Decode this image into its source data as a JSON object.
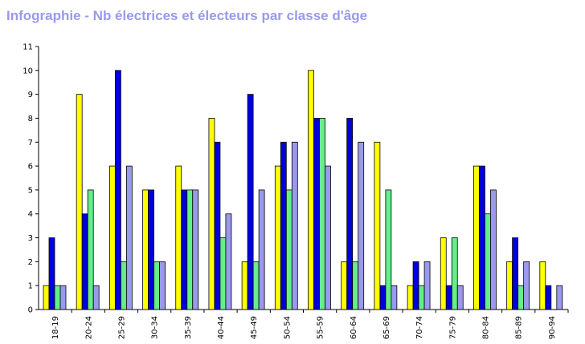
{
  "title": "Infographie - Nb électrices et électeurs par classe d'âge",
  "chart_data": {
    "type": "bar",
    "title": "Infographie - Nb électrices et électeurs par classe d'âge",
    "xlabel": "",
    "ylabel": "",
    "ylim": [
      0,
      11
    ],
    "yticks": [
      0,
      1,
      2,
      3,
      4,
      5,
      6,
      7,
      8,
      9,
      10,
      11
    ],
    "grid": false,
    "legend": "none",
    "categories": [
      "18-19",
      "20-24",
      "25-29",
      "30-34",
      "35-39",
      "40-44",
      "45-49",
      "50-54",
      "55-59",
      "60-64",
      "65-69",
      "70-74",
      "75-79",
      "80-84",
      "85-89",
      "90-94"
    ],
    "series": [
      {
        "color": "#ffff00",
        "values": [
          1,
          9,
          6,
          5,
          6,
          8,
          2,
          6,
          10,
          2,
          7,
          1,
          3,
          6,
          2,
          2
        ]
      },
      {
        "color": "#0000dd",
        "values": [
          3,
          4,
          10,
          5,
          5,
          7,
          9,
          7,
          8,
          8,
          1,
          2,
          1,
          6,
          3,
          1
        ]
      },
      {
        "color": "#66ee88",
        "values": [
          1,
          5,
          2,
          2,
          5,
          3,
          2,
          5,
          8,
          2,
          5,
          1,
          3,
          4,
          1,
          0
        ]
      },
      {
        "color": "#9999ee",
        "values": [
          1,
          1,
          6,
          2,
          5,
          4,
          5,
          7,
          6,
          7,
          1,
          2,
          1,
          5,
          2,
          1
        ]
      }
    ]
  }
}
